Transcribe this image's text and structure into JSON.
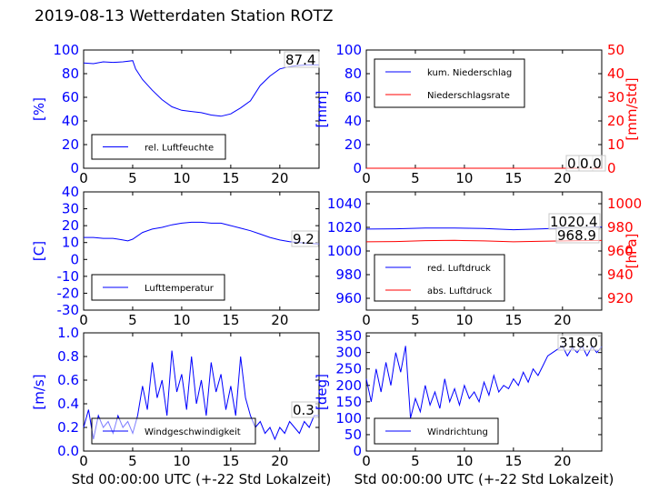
{
  "suptitle": "2019-08-13 Wetterdaten Station ROTZ",
  "colors": {
    "primary": "#0000ff",
    "secondary": "#ff0000",
    "axis": "#000000"
  },
  "chart_data": [
    {
      "id": "humidity",
      "type": "line",
      "xlim": [
        0,
        24
      ],
      "ylim": [
        0,
        100
      ],
      "xticks": [
        0,
        5,
        10,
        15,
        20
      ],
      "yticks": [
        0,
        20,
        40,
        60,
        80,
        100
      ],
      "ylabel": "[%]",
      "ylabel_color": "#0000ff",
      "readout": "87.4",
      "legend": {
        "placement": "lower-left",
        "entries": [
          {
            "label": "rel. Luftfeuchte",
            "color": "#0000ff"
          }
        ]
      },
      "series": [
        {
          "name": "rel. Luftfeuchte",
          "color": "#0000ff",
          "x": [
            0,
            1,
            2,
            3,
            4,
            5,
            5.3,
            6,
            7,
            8,
            9,
            10,
            11,
            12,
            13,
            14,
            15,
            16,
            17,
            18,
            19,
            20,
            21,
            22,
            23,
            24
          ],
          "y": [
            89,
            88.5,
            90,
            89.5,
            90,
            91,
            84,
            75,
            66,
            58,
            52,
            49,
            48,
            47,
            45,
            44,
            46,
            51,
            57,
            70,
            78,
            84,
            86,
            87,
            87.5,
            87.4
          ]
        }
      ]
    },
    {
      "id": "precipitation",
      "type": "line",
      "xlim": [
        0,
        24
      ],
      "ylim": [
        0,
        100
      ],
      "ylim_right": [
        0,
        50
      ],
      "xticks": [
        0,
        5,
        10,
        15,
        20
      ],
      "yticks": [
        0,
        20,
        40,
        60,
        80,
        100
      ],
      "yticks_right": [
        0,
        10,
        20,
        30,
        40,
        50
      ],
      "ylabel": "[mm]",
      "ylabel_color": "#0000ff",
      "ylabel_right": "[mm/std]",
      "ylabel_right_color": "#ff0000",
      "readout": "0.0",
      "readout_right": "0.0",
      "legend": {
        "placement": "upper-left",
        "entries": [
          {
            "label": "kum. Niederschlag",
            "color": "#0000ff"
          },
          {
            "label": "Niederschlagsrate",
            "color": "#ff0000"
          }
        ]
      },
      "series": [
        {
          "name": "kum. Niederschlag",
          "color": "#0000ff",
          "axis": "left",
          "x": [
            0,
            24
          ],
          "y": [
            0,
            0
          ]
        },
        {
          "name": "Niederschlagsrate",
          "color": "#ff0000",
          "axis": "right",
          "x": [
            0,
            24
          ],
          "y": [
            0,
            0
          ]
        }
      ]
    },
    {
      "id": "temperature",
      "type": "line",
      "xlim": [
        0,
        24
      ],
      "ylim": [
        -30,
        40
      ],
      "xticks": [
        0,
        5,
        10,
        15,
        20
      ],
      "yticks": [
        -30,
        -20,
        -10,
        0,
        10,
        20,
        30,
        40
      ],
      "ylabel": "[C]",
      "ylabel_color": "#0000ff",
      "readout": "9.2",
      "legend": {
        "placement": "lower-left",
        "entries": [
          {
            "label": "Lufttemperatur",
            "color": "#0000ff"
          }
        ]
      },
      "series": [
        {
          "name": "Lufttemperatur",
          "color": "#0000ff",
          "x": [
            0,
            1,
            2,
            3,
            4,
            4.5,
            5,
            6,
            7,
            8,
            9,
            10,
            11,
            12,
            13,
            14,
            15,
            16,
            17,
            18,
            19,
            20,
            21,
            22,
            23,
            24
          ],
          "y": [
            13,
            13,
            12.5,
            12.5,
            11.5,
            11,
            12,
            16,
            18,
            19,
            20.5,
            21.5,
            22,
            22,
            21.5,
            21.5,
            20,
            18.5,
            17,
            15,
            13,
            11.5,
            10.5,
            10,
            9.5,
            9.2
          ]
        }
      ]
    },
    {
      "id": "pressure",
      "type": "line",
      "xlim": [
        0,
        24
      ],
      "ylim": [
        950,
        1050
      ],
      "ylim_right": [
        910,
        1010
      ],
      "xticks": [
        0,
        5,
        10,
        15,
        20
      ],
      "yticks": [
        960,
        980,
        1000,
        1020,
        1040
      ],
      "yticks_right": [
        920,
        940,
        960,
        980,
        1000
      ],
      "ylabel_right": "[hPa]",
      "ylabel_right_color": "#ff0000",
      "readout": "1020.4",
      "readout_right": "968.9",
      "legend": {
        "placement": "lower-left",
        "entries": [
          {
            "label": "red. Luftdruck",
            "color": "#0000ff"
          },
          {
            "label": "abs. Luftdruck",
            "color": "#ff0000"
          }
        ]
      },
      "series": [
        {
          "name": "red. Luftdruck",
          "color": "#0000ff",
          "axis": "left",
          "x": [
            0,
            3,
            6,
            9,
            12,
            15,
            18,
            21,
            24
          ],
          "y": [
            1018.5,
            1018.8,
            1019.5,
            1019.5,
            1019,
            1018,
            1018.8,
            1019.8,
            1020.4
          ]
        },
        {
          "name": "abs. Luftdruck",
          "color": "#ff0000",
          "axis": "right",
          "x": [
            0,
            3,
            6,
            9,
            12,
            15,
            18,
            21,
            24
          ],
          "y": [
            967.8,
            968,
            968.8,
            969,
            968.5,
            967.8,
            968.3,
            968.7,
            968.9
          ]
        }
      ]
    },
    {
      "id": "windspeed",
      "type": "line",
      "xlim": [
        0,
        24
      ],
      "ylim": [
        0,
        1.0
      ],
      "xticks": [
        0,
        5,
        10,
        15,
        20
      ],
      "yticks": [
        0.0,
        0.2,
        0.4,
        0.6,
        0.8,
        1.0
      ],
      "ylabel": "[m/s]",
      "ylabel_color": "#0000ff",
      "xlabel": "Std 00:00:00 UTC (+-22 Std Lokalzeit)",
      "readout": "0.3",
      "legend": {
        "placement": "lower-left",
        "entries": [
          {
            "label": "Windgeschwindigkeit",
            "color": "#0000ff"
          }
        ]
      },
      "series": [
        {
          "name": "Windgeschwindigkeit",
          "color": "#0000ff",
          "x": [
            0,
            0.5,
            1,
            1.5,
            2,
            2.5,
            3,
            3.5,
            4,
            4.5,
            5,
            5.5,
            6,
            6.5,
            7,
            7.5,
            8,
            8.5,
            9,
            9.5,
            10,
            10.5,
            11,
            11.5,
            12,
            12.5,
            13,
            13.5,
            14,
            14.5,
            15,
            15.5,
            16,
            16.5,
            17,
            17.5,
            18,
            18.5,
            19,
            19.5,
            20,
            20.5,
            21,
            21.5,
            22,
            22.5,
            23,
            23.5,
            24
          ],
          "y": [
            0.2,
            0.35,
            0.1,
            0.3,
            0.2,
            0.25,
            0.15,
            0.3,
            0.2,
            0.25,
            0.15,
            0.3,
            0.55,
            0.35,
            0.75,
            0.45,
            0.6,
            0.3,
            0.85,
            0.5,
            0.65,
            0.35,
            0.8,
            0.4,
            0.6,
            0.3,
            0.75,
            0.5,
            0.65,
            0.35,
            0.55,
            0.3,
            0.8,
            0.45,
            0.3,
            0.2,
            0.25,
            0.15,
            0.2,
            0.1,
            0.2,
            0.15,
            0.25,
            0.2,
            0.15,
            0.25,
            0.2,
            0.3,
            0.3
          ]
        }
      ]
    },
    {
      "id": "winddirection",
      "type": "line",
      "xlim": [
        0,
        24
      ],
      "ylim": [
        0,
        360
      ],
      "xticks": [
        0,
        5,
        10,
        15,
        20
      ],
      "yticks": [
        0,
        50,
        100,
        150,
        200,
        250,
        300,
        350
      ],
      "ylabel": "[deg]",
      "ylabel_color": "#0000ff",
      "xlabel": "Std 00:00:00 UTC (+-22 Std Lokalzeit)",
      "readout": "318.0",
      "legend": {
        "placement": "lower-left",
        "entries": [
          {
            "label": "Windrichtung",
            "color": "#0000ff"
          }
        ]
      },
      "series": [
        {
          "name": "Windrichtung",
          "color": "#0000ff",
          "x": [
            0,
            0.5,
            1,
            1.5,
            2,
            2.5,
            3,
            3.5,
            4,
            4.5,
            5,
            5.5,
            6,
            6.5,
            7,
            7.5,
            8,
            8.5,
            9,
            9.5,
            10,
            10.5,
            11,
            11.5,
            12,
            12.5,
            13,
            13.5,
            14,
            14.5,
            15,
            15.5,
            16,
            16.5,
            17,
            17.5,
            18,
            18.5,
            19,
            19.5,
            20,
            20.5,
            21,
            21.5,
            22,
            22.5,
            23,
            23.5,
            24
          ],
          "y": [
            220,
            150,
            250,
            180,
            270,
            200,
            300,
            240,
            320,
            100,
            160,
            120,
            200,
            140,
            180,
            130,
            220,
            150,
            190,
            140,
            200,
            160,
            180,
            150,
            210,
            170,
            230,
            180,
            200,
            190,
            220,
            200,
            240,
            210,
            250,
            230,
            260,
            290,
            300,
            310,
            320,
            290,
            315,
            300,
            320,
            290,
            318,
            300,
            318
          ]
        }
      ]
    }
  ]
}
